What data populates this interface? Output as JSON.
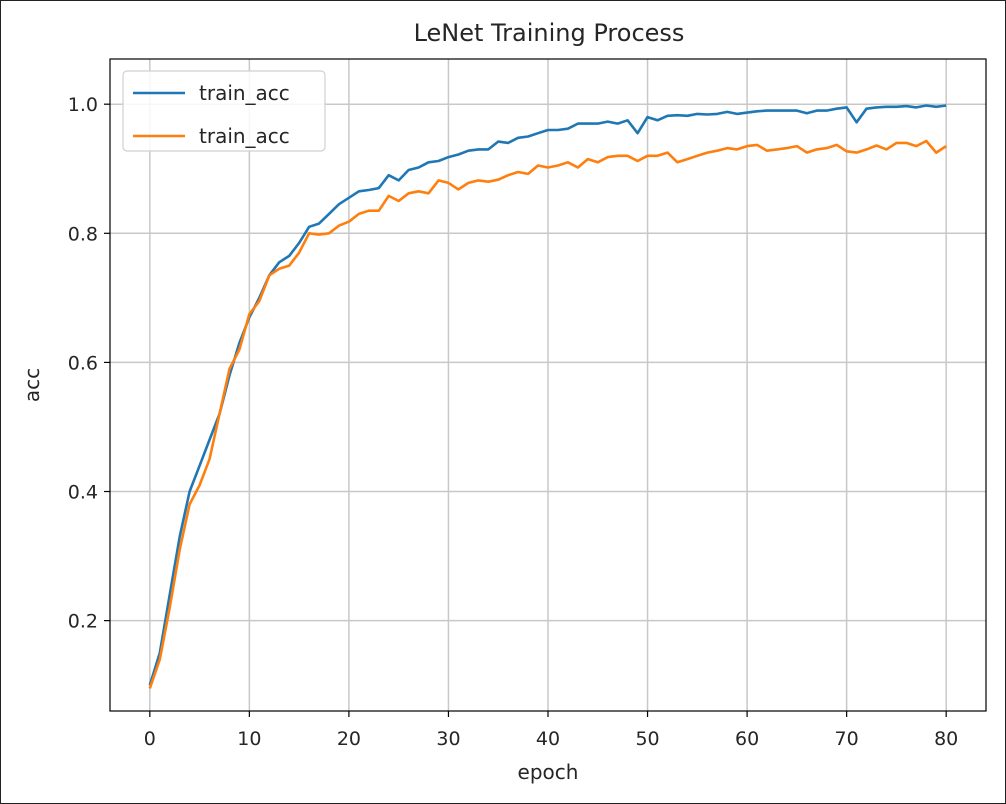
{
  "chart_data": {
    "type": "line",
    "title": "LeNet Training Process",
    "xlabel": "epoch",
    "ylabel": "acc",
    "xlim": [
      -4,
      84
    ],
    "ylim": [
      0.06,
      1.07
    ],
    "xticks": [
      0,
      10,
      20,
      30,
      40,
      50,
      60,
      70,
      80
    ],
    "yticks": [
      0.2,
      0.4,
      0.6,
      0.8,
      1.0
    ],
    "xtick_labels": [
      "0",
      "10",
      "20",
      "30",
      "40",
      "50",
      "60",
      "70",
      "80"
    ],
    "ytick_labels": [
      "0.2",
      "0.4",
      "0.6",
      "0.8",
      "1.0"
    ],
    "grid": true,
    "legend_location": "top-left",
    "x": [
      0,
      1,
      2,
      3,
      4,
      5,
      6,
      7,
      8,
      9,
      10,
      11,
      12,
      13,
      14,
      15,
      16,
      17,
      18,
      19,
      20,
      21,
      22,
      23,
      24,
      25,
      26,
      27,
      28,
      29,
      30,
      31,
      32,
      33,
      34,
      35,
      36,
      37,
      38,
      39,
      40,
      41,
      42,
      43,
      44,
      45,
      46,
      47,
      48,
      49,
      50,
      51,
      52,
      53,
      54,
      55,
      56,
      57,
      58,
      59,
      60,
      61,
      62,
      63,
      64,
      65,
      66,
      67,
      68,
      69,
      70,
      71,
      72,
      73,
      74,
      75,
      76,
      77,
      78,
      79,
      80
    ],
    "series": [
      {
        "name": "train_acc",
        "color": "#1f77b4",
        "values": [
          0.1,
          0.15,
          0.24,
          0.33,
          0.4,
          0.44,
          0.48,
          0.52,
          0.58,
          0.63,
          0.67,
          0.7,
          0.735,
          0.755,
          0.765,
          0.785,
          0.81,
          0.815,
          0.83,
          0.845,
          0.855,
          0.865,
          0.867,
          0.87,
          0.89,
          0.882,
          0.898,
          0.902,
          0.91,
          0.912,
          0.918,
          0.922,
          0.928,
          0.93,
          0.93,
          0.942,
          0.94,
          0.948,
          0.95,
          0.955,
          0.96,
          0.96,
          0.962,
          0.97,
          0.97,
          0.97,
          0.973,
          0.97,
          0.975,
          0.955,
          0.98,
          0.975,
          0.982,
          0.983,
          0.982,
          0.985,
          0.984,
          0.985,
          0.988,
          0.985,
          0.987,
          0.989,
          0.99,
          0.99,
          0.99,
          0.99,
          0.986,
          0.99,
          0.99,
          0.993,
          0.995,
          0.972,
          0.993,
          0.995,
          0.996,
          0.996,
          0.997,
          0.995,
          0.998,
          0.996,
          0.998
        ]
      },
      {
        "name": "train_acc",
        "color": "#ff7f0e",
        "values": [
          0.095,
          0.14,
          0.22,
          0.31,
          0.38,
          0.41,
          0.45,
          0.52,
          0.59,
          0.62,
          0.675,
          0.695,
          0.735,
          0.745,
          0.75,
          0.77,
          0.8,
          0.798,
          0.8,
          0.812,
          0.818,
          0.83,
          0.835,
          0.835,
          0.858,
          0.85,
          0.862,
          0.865,
          0.862,
          0.882,
          0.878,
          0.868,
          0.878,
          0.882,
          0.88,
          0.883,
          0.89,
          0.895,
          0.892,
          0.905,
          0.902,
          0.905,
          0.91,
          0.902,
          0.915,
          0.91,
          0.918,
          0.92,
          0.92,
          0.912,
          0.92,
          0.92,
          0.925,
          0.91,
          0.915,
          0.92,
          0.925,
          0.928,
          0.932,
          0.93,
          0.935,
          0.937,
          0.928,
          0.93,
          0.932,
          0.935,
          0.925,
          0.93,
          0.932,
          0.937,
          0.927,
          0.925,
          0.93,
          0.936,
          0.93,
          0.94,
          0.94,
          0.935,
          0.943,
          0.925,
          0.935
        ]
      }
    ]
  }
}
